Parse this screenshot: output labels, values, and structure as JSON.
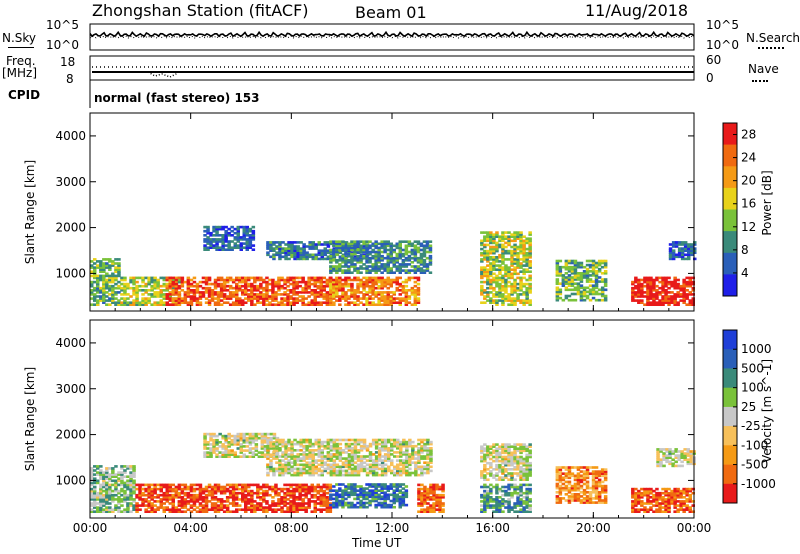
{
  "header": {
    "title": "Zhongshan Station (fitACF)",
    "beam": "Beam 01",
    "date": "11/Aug/2018"
  },
  "status_panels": {
    "nsky_label": "N.Sky",
    "nsearch_label": "N.Search",
    "nsky_ticks": [
      "10^5",
      "10^0"
    ],
    "nsearch_ticks": [
      "10^5",
      "10^0"
    ],
    "freq_label": "Freq.",
    "freq_unit": "[MHz]",
    "freq_ticks": [
      "18",
      "8"
    ],
    "nave_label": "Nave",
    "nave_ticks": [
      "60",
      "0"
    ],
    "cpid_label": "CPID",
    "cpid_text": "normal (fast stereo) 153"
  },
  "colors": {
    "power": [
      "#1f1fe8",
      "#2a5fb8",
      "#3a8a7a",
      "#7ac23a",
      "#e8d21a",
      "#f59a15",
      "#f06a10",
      "#e81a1a"
    ],
    "velocity": [
      "#e81a1a",
      "#f06a10",
      "#f59a15",
      "#f7c05a",
      "#c8c8c8",
      "#7ac23a",
      "#3a8a7a",
      "#2a5fb8",
      "#1f3fd8"
    ]
  },
  "chart_data": [
    {
      "type": "heatmap",
      "title": "",
      "xlabel": "Time UT",
      "ylabel": "Slant Range [km]",
      "x_ticks": [
        "00:00",
        "04:00",
        "08:00",
        "12:00",
        "16:00",
        "20:00",
        "00:00"
      ],
      "xlim": [
        0,
        24
      ],
      "y_ticks": [
        1000,
        2000,
        3000,
        4000
      ],
      "ylim": [
        180,
        4500
      ],
      "colorbar": {
        "label": "Power [dB]",
        "ticks": [
          4,
          8,
          12,
          16,
          20,
          24,
          28
        ],
        "range": [
          0,
          30
        ]
      },
      "regions": [
        {
          "t": [
            0.0,
            1.2
          ],
          "r": [
            300,
            1300
          ],
          "level": 0.4
        },
        {
          "t": [
            1.2,
            3.5
          ],
          "r": [
            300,
            900
          ],
          "level": 0.5
        },
        {
          "t": [
            3.0,
            9.5
          ],
          "r": [
            300,
            900
          ],
          "level": 0.85
        },
        {
          "t": [
            4.5,
            6.5
          ],
          "r": [
            1500,
            2000
          ],
          "level": 0.2
        },
        {
          "t": [
            7.0,
            11.0
          ],
          "r": [
            1300,
            1700
          ],
          "level": 0.25
        },
        {
          "t": [
            9.5,
            13.0
          ],
          "r": [
            300,
            900
          ],
          "level": 0.75
        },
        {
          "t": [
            9.5,
            13.5
          ],
          "r": [
            1000,
            1700
          ],
          "level": 0.3
        },
        {
          "t": [
            15.5,
            17.5
          ],
          "r": [
            300,
            1900
          ],
          "level": 0.5
        },
        {
          "t": [
            18.5,
            20.5
          ],
          "r": [
            400,
            1300
          ],
          "level": 0.4
        },
        {
          "t": [
            21.5,
            24.0
          ],
          "r": [
            300,
            900
          ],
          "level": 0.95
        },
        {
          "t": [
            23.0,
            24.0
          ],
          "r": [
            1300,
            1700
          ],
          "level": 0.2
        }
      ]
    },
    {
      "type": "heatmap",
      "title": "",
      "xlabel": "Time UT",
      "ylabel": "Slant Range [km]",
      "x_ticks": [
        "00:00",
        "04:00",
        "08:00",
        "12:00",
        "16:00",
        "20:00",
        "00:00"
      ],
      "xlim": [
        0,
        24
      ],
      "y_ticks": [
        1000,
        2000,
        3000,
        4000
      ],
      "ylim": [
        180,
        4500
      ],
      "colorbar": {
        "label": "Velocity [m s^-1]",
        "ticks": [
          "1000",
          "500",
          "100",
          "25",
          "-25",
          "-100",
          "-500",
          "-1000"
        ],
        "range": [
          -1000,
          1000
        ]
      },
      "regions": [
        {
          "t": [
            0.0,
            1.8
          ],
          "r": [
            300,
            1300
          ],
          "level": 0.6
        },
        {
          "t": [
            1.8,
            9.5
          ],
          "r": [
            300,
            900
          ],
          "level": 0.1
        },
        {
          "t": [
            4.5,
            7.5
          ],
          "r": [
            1500,
            2000
          ],
          "level": 0.5
        },
        {
          "t": [
            7.0,
            13.5
          ],
          "r": [
            1100,
            1900
          ],
          "level": 0.5
        },
        {
          "t": [
            9.5,
            12.5
          ],
          "r": [
            400,
            900
          ],
          "level": 0.8
        },
        {
          "t": [
            13.0,
            14.0
          ],
          "r": [
            300,
            900
          ],
          "level": 0.15
        },
        {
          "t": [
            15.5,
            17.5
          ],
          "r": [
            300,
            900
          ],
          "level": 0.7
        },
        {
          "t": [
            15.5,
            17.5
          ],
          "r": [
            1000,
            1800
          ],
          "level": 0.5
        },
        {
          "t": [
            18.5,
            20.5
          ],
          "r": [
            500,
            1300
          ],
          "level": 0.25
        },
        {
          "t": [
            21.5,
            24.0
          ],
          "r": [
            300,
            800
          ],
          "level": 0.15
        },
        {
          "t": [
            22.5,
            24.0
          ],
          "r": [
            1300,
            1700
          ],
          "level": 0.5
        }
      ]
    }
  ]
}
